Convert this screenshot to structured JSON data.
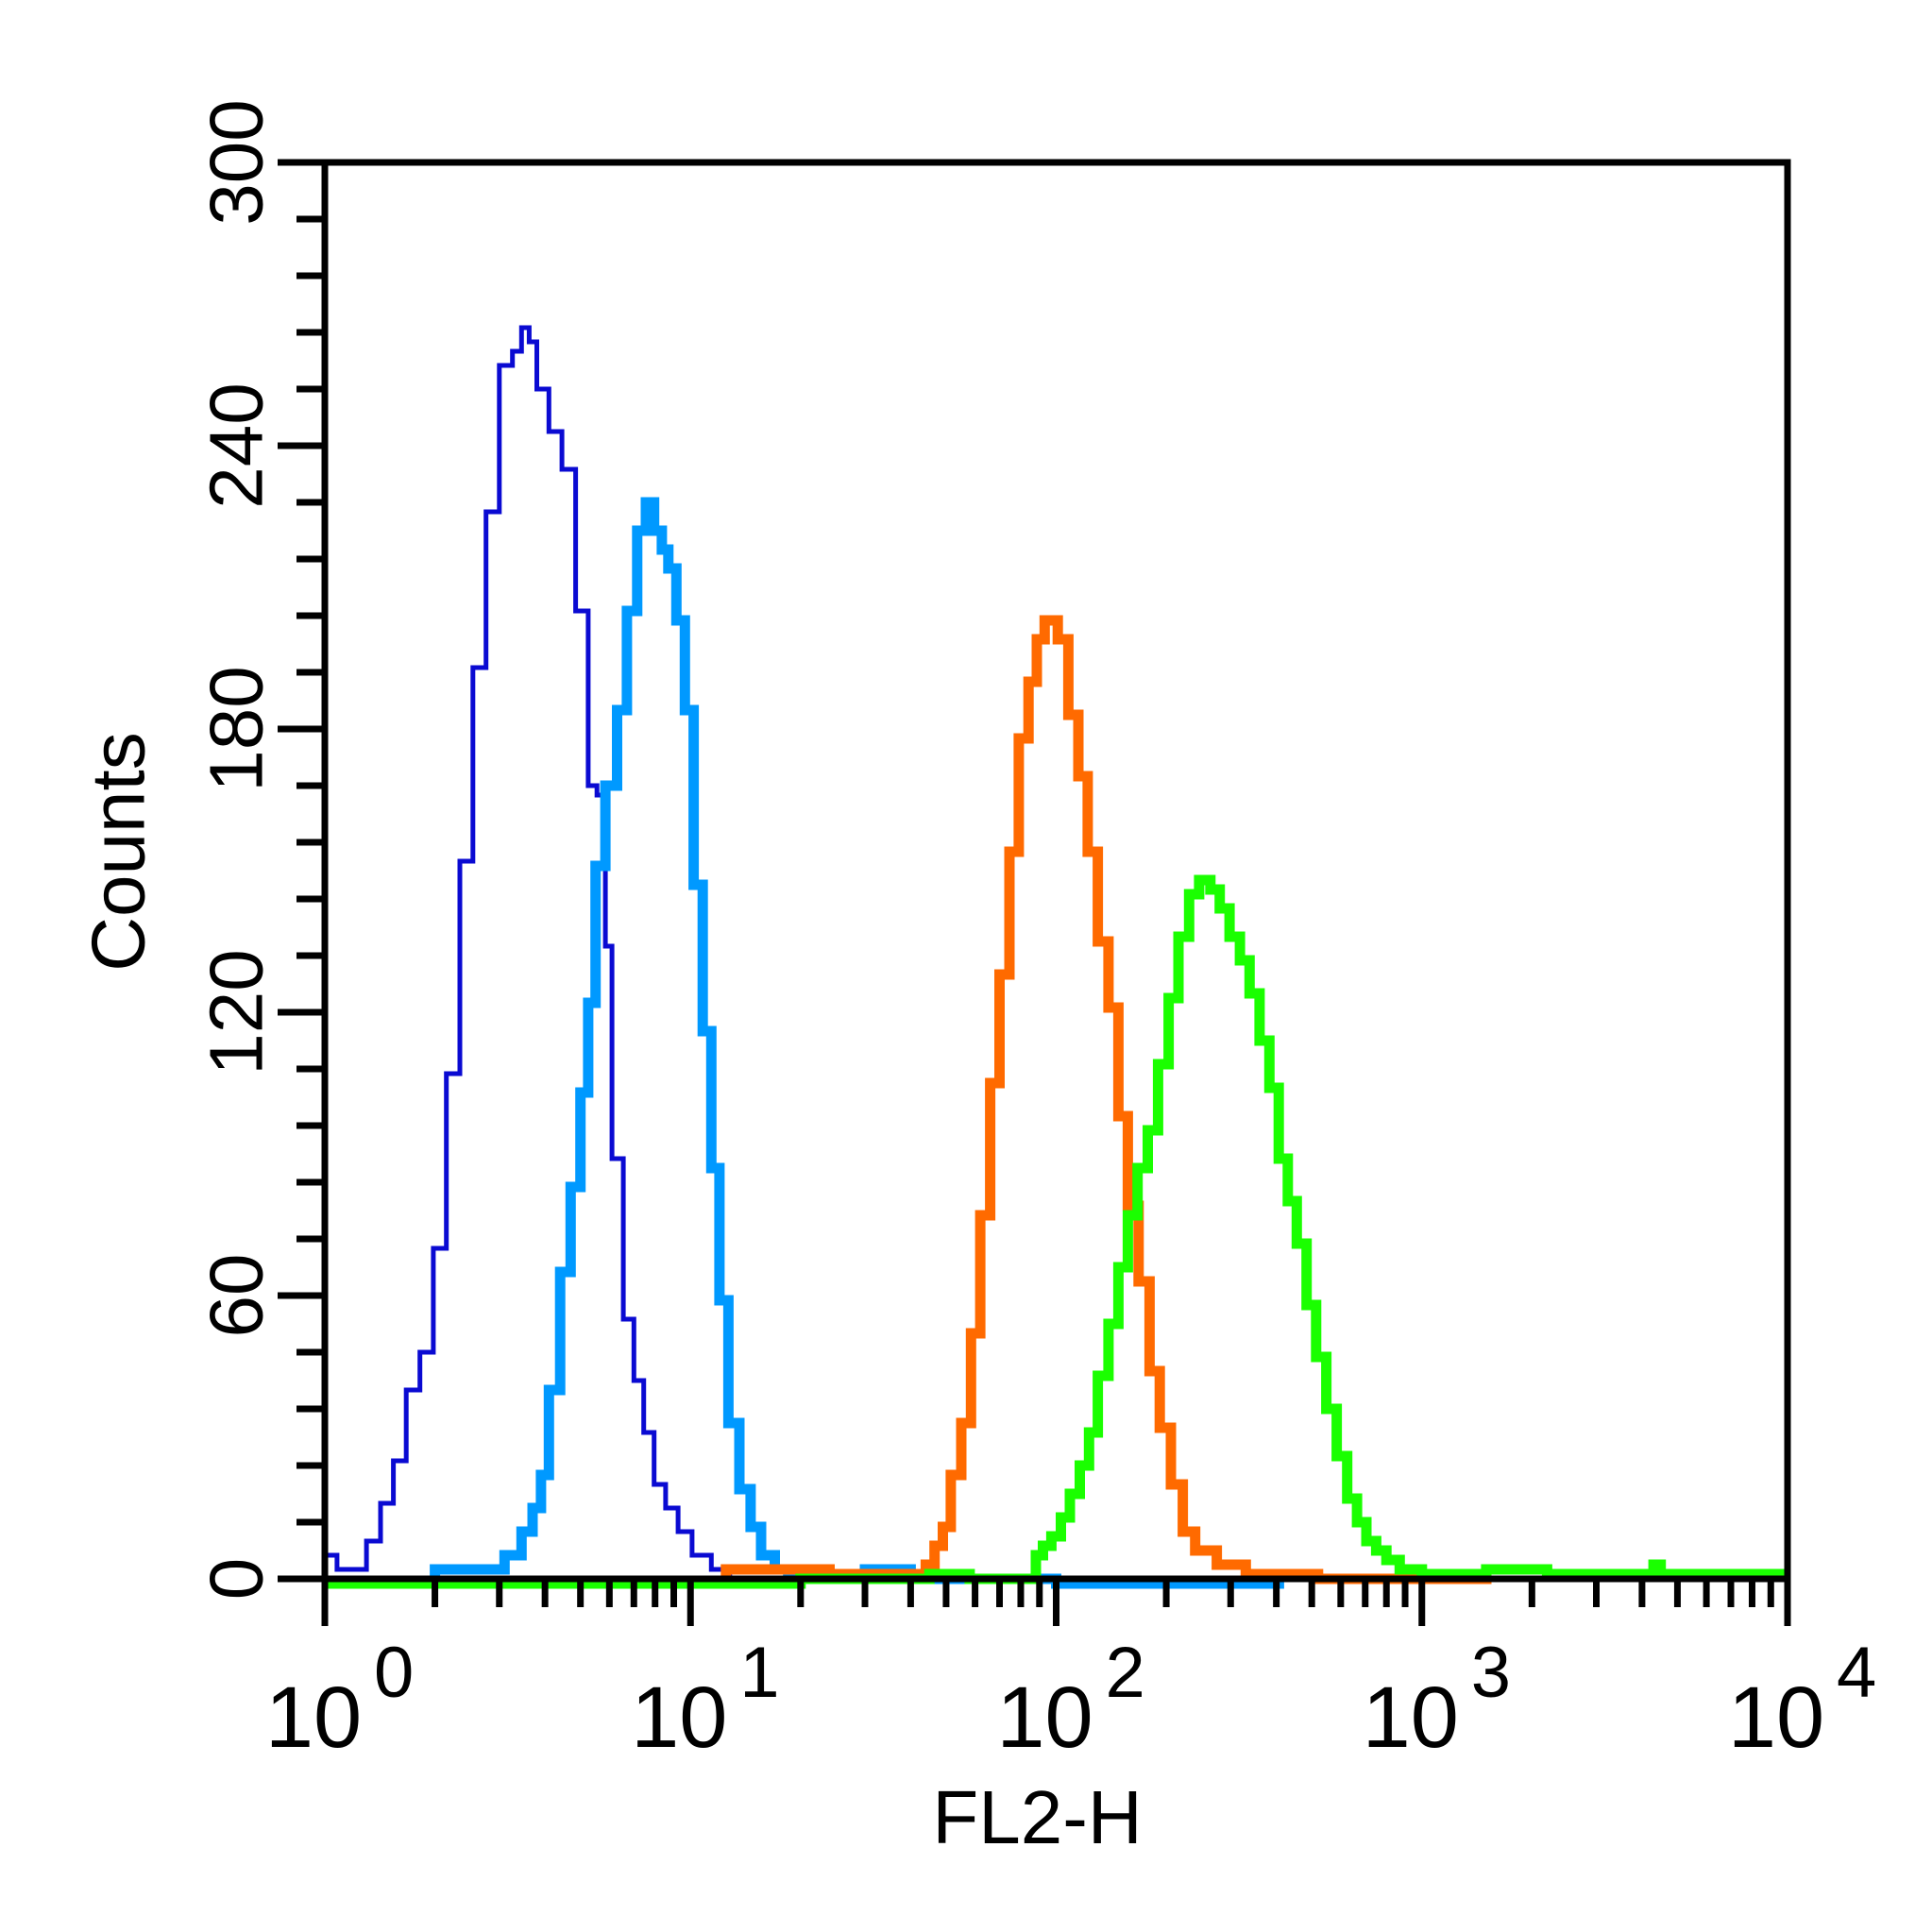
{
  "chart_data": {
    "type": "histogram",
    "xlabel": "FL2-H",
    "ylabel": "Counts",
    "x_scale": "log",
    "xlim": [
      1,
      10000
    ],
    "ylim": [
      0,
      300
    ],
    "x_major_ticks": [
      {
        "value": 1,
        "base": "10",
        "exp": "0"
      },
      {
        "value": 10,
        "base": "10",
        "exp": "1"
      },
      {
        "value": 100,
        "base": "10",
        "exp": "2"
      },
      {
        "value": 1000,
        "base": "10",
        "exp": "3"
      },
      {
        "value": 10000,
        "base": "10",
        "exp": "4"
      }
    ],
    "y_ticks": [
      0,
      60,
      120,
      180,
      240,
      300
    ],
    "y_minor_step": 12,
    "grid": false,
    "legend": false,
    "series": [
      {
        "color": "#0A0AD2",
        "stroke_width": 5,
        "points": [
          [
            1.0,
            0
          ],
          [
            1.0,
            5
          ],
          [
            1.08,
            5
          ],
          [
            1.08,
            2
          ],
          [
            1.3,
            2
          ],
          [
            1.3,
            8
          ],
          [
            1.42,
            8
          ],
          [
            1.42,
            16
          ],
          [
            1.54,
            16
          ],
          [
            1.54,
            25
          ],
          [
            1.67,
            25
          ],
          [
            1.67,
            40
          ],
          [
            1.82,
            40
          ],
          [
            1.82,
            48
          ],
          [
            1.98,
            48
          ],
          [
            1.98,
            70
          ],
          [
            2.15,
            70
          ],
          [
            2.15,
            107
          ],
          [
            2.34,
            107
          ],
          [
            2.34,
            152
          ],
          [
            2.54,
            152
          ],
          [
            2.54,
            193
          ],
          [
            2.76,
            193
          ],
          [
            2.76,
            226
          ],
          [
            3.0,
            226
          ],
          [
            3.0,
            257
          ],
          [
            3.26,
            257
          ],
          [
            3.26,
            260
          ],
          [
            3.45,
            260
          ],
          [
            3.45,
            265
          ],
          [
            3.62,
            265
          ],
          [
            3.62,
            262
          ],
          [
            3.8,
            262
          ],
          [
            3.8,
            252
          ],
          [
            4.1,
            252
          ],
          [
            4.1,
            243
          ],
          [
            4.45,
            243
          ],
          [
            4.45,
            235
          ],
          [
            4.85,
            235
          ],
          [
            4.85,
            205
          ],
          [
            5.25,
            205
          ],
          [
            5.25,
            168
          ],
          [
            5.55,
            168
          ],
          [
            5.55,
            166
          ],
          [
            5.85,
            166
          ],
          [
            5.85,
            134
          ],
          [
            6.1,
            134
          ],
          [
            6.1,
            89
          ],
          [
            6.55,
            89
          ],
          [
            6.55,
            55
          ],
          [
            7.0,
            55
          ],
          [
            7.0,
            42
          ],
          [
            7.45,
            42
          ],
          [
            7.45,
            31
          ],
          [
            7.95,
            31
          ],
          [
            7.95,
            20
          ],
          [
            8.55,
            20
          ],
          [
            8.55,
            15
          ],
          [
            9.25,
            15
          ],
          [
            9.25,
            10
          ],
          [
            10.1,
            10
          ],
          [
            10.1,
            5
          ],
          [
            11.4,
            5
          ],
          [
            11.4,
            2
          ],
          [
            12.8,
            2
          ],
          [
            12.8,
            0
          ],
          [
            14.0,
            0
          ]
        ]
      },
      {
        "color": "#0099FF",
        "stroke_width": 11,
        "points": [
          [
            2.0,
            0
          ],
          [
            2.0,
            2
          ],
          [
            3.1,
            2
          ],
          [
            3.1,
            5
          ],
          [
            3.45,
            5
          ],
          [
            3.45,
            10
          ],
          [
            3.7,
            10
          ],
          [
            3.7,
            15
          ],
          [
            3.9,
            15
          ],
          [
            3.9,
            22
          ],
          [
            4.1,
            22
          ],
          [
            4.1,
            40
          ],
          [
            4.4,
            40
          ],
          [
            4.4,
            65
          ],
          [
            4.7,
            65
          ],
          [
            4.7,
            83
          ],
          [
            5.0,
            83
          ],
          [
            5.0,
            103
          ],
          [
            5.25,
            103
          ],
          [
            5.25,
            122
          ],
          [
            5.5,
            122
          ],
          [
            5.5,
            151
          ],
          [
            5.85,
            151
          ],
          [
            5.85,
            168
          ],
          [
            6.3,
            168
          ],
          [
            6.3,
            184
          ],
          [
            6.7,
            184
          ],
          [
            6.7,
            205
          ],
          [
            7.15,
            205
          ],
          [
            7.15,
            222
          ],
          [
            7.55,
            222
          ],
          [
            7.55,
            228
          ],
          [
            7.95,
            228
          ],
          [
            7.95,
            222
          ],
          [
            8.35,
            222
          ],
          [
            8.35,
            218
          ],
          [
            8.7,
            218
          ],
          [
            8.7,
            214
          ],
          [
            9.15,
            214
          ],
          [
            9.15,
            203
          ],
          [
            9.65,
            203
          ],
          [
            9.65,
            184
          ],
          [
            10.2,
            184
          ],
          [
            10.2,
            147
          ],
          [
            10.8,
            147
          ],
          [
            10.8,
            116
          ],
          [
            11.4,
            116
          ],
          [
            11.4,
            87
          ],
          [
            12.0,
            87
          ],
          [
            12.0,
            59
          ],
          [
            12.7,
            59
          ],
          [
            12.7,
            33
          ],
          [
            13.6,
            33
          ],
          [
            13.6,
            19
          ],
          [
            14.6,
            19
          ],
          [
            14.6,
            11
          ],
          [
            15.6,
            11
          ],
          [
            15.6,
            5
          ],
          [
            17.0,
            5
          ],
          [
            17.0,
            2
          ],
          [
            18.5,
            2
          ],
          [
            18.5,
            0
          ],
          [
            30.0,
            0
          ],
          [
            30.0,
            2
          ],
          [
            40.0,
            2
          ],
          [
            40.0,
            0
          ],
          [
            100.0,
            0
          ],
          [
            100.0,
            -1
          ],
          [
            420.0,
            -1
          ]
        ]
      },
      {
        "color": "#FF6A00",
        "stroke_width": 11,
        "points": [
          [
            12.5,
            0
          ],
          [
            12.5,
            2
          ],
          [
            24.0,
            2
          ],
          [
            24.0,
            1
          ],
          [
            44.0,
            1
          ],
          [
            44.0,
            3
          ],
          [
            46.5,
            3
          ],
          [
            46.5,
            7
          ],
          [
            49.0,
            7
          ],
          [
            49.0,
            11
          ],
          [
            51.5,
            11
          ],
          [
            51.5,
            22
          ],
          [
            55.0,
            22
          ],
          [
            55.0,
            33
          ],
          [
            58.5,
            33
          ],
          [
            58.5,
            52
          ],
          [
            62.0,
            52
          ],
          [
            62.0,
            77
          ],
          [
            66.0,
            77
          ],
          [
            66.0,
            105
          ],
          [
            70.0,
            105
          ],
          [
            70.0,
            128
          ],
          [
            74.5,
            128
          ],
          [
            74.5,
            154
          ],
          [
            79.0,
            154
          ],
          [
            79.0,
            178
          ],
          [
            84.0,
            178
          ],
          [
            84.0,
            190
          ],
          [
            88.5,
            190
          ],
          [
            88.5,
            199
          ],
          [
            93.0,
            199
          ],
          [
            93.0,
            203
          ],
          [
            101.0,
            203
          ],
          [
            101.0,
            199
          ],
          [
            108.0,
            199
          ],
          [
            108.0,
            183
          ],
          [
            115.0,
            183
          ],
          [
            115.0,
            170
          ],
          [
            122.0,
            170
          ],
          [
            122.0,
            154
          ],
          [
            130.0,
            154
          ],
          [
            130.0,
            135
          ],
          [
            139.0,
            135
          ],
          [
            139.0,
            121
          ],
          [
            148.0,
            121
          ],
          [
            148.0,
            98
          ],
          [
            157.0,
            98
          ],
          [
            157.0,
            79
          ],
          [
            168.0,
            79
          ],
          [
            168.0,
            63
          ],
          [
            180.0,
            63
          ],
          [
            180.0,
            44
          ],
          [
            192.0,
            44
          ],
          [
            192.0,
            32
          ],
          [
            206.0,
            32
          ],
          [
            206.0,
            20
          ],
          [
            222.0,
            20
          ],
          [
            222.0,
            10
          ],
          [
            240.0,
            10
          ],
          [
            240.0,
            6
          ],
          [
            275.0,
            6
          ],
          [
            275.0,
            3
          ],
          [
            330.0,
            3
          ],
          [
            330.0,
            1
          ],
          [
            520.0,
            1
          ],
          [
            520.0,
            0
          ],
          [
            1550.0,
            0
          ]
        ]
      },
      {
        "color": "#1AFF00",
        "stroke_width": 11,
        "points": [
          [
            1.0,
            -1
          ],
          [
            20.0,
            -1
          ],
          [
            20.0,
            0
          ],
          [
            45.0,
            0
          ],
          [
            45.0,
            1
          ],
          [
            58.0,
            1
          ],
          [
            58.0,
            0
          ],
          [
            88.0,
            0
          ],
          [
            88.0,
            5
          ],
          [
            92.0,
            5
          ],
          [
            92.0,
            7
          ],
          [
            97.0,
            7
          ],
          [
            97.0,
            9
          ],
          [
            103.0,
            9
          ],
          [
            103.0,
            13
          ],
          [
            109.0,
            13
          ],
          [
            109.0,
            18
          ],
          [
            116.0,
            18
          ],
          [
            116.0,
            24
          ],
          [
            123.0,
            24
          ],
          [
            123.0,
            31
          ],
          [
            130.0,
            31
          ],
          [
            130.0,
            43
          ],
          [
            139.0,
            43
          ],
          [
            139.0,
            54
          ],
          [
            148.0,
            54
          ],
          [
            148.0,
            66
          ],
          [
            157.0,
            66
          ],
          [
            157.0,
            77
          ],
          [
            167.0,
            77
          ],
          [
            167.0,
            87
          ],
          [
            178.0,
            87
          ],
          [
            178.0,
            95
          ],
          [
            190.0,
            95
          ],
          [
            190.0,
            109
          ],
          [
            203.0,
            109
          ],
          [
            203.0,
            123
          ],
          [
            216.0,
            123
          ],
          [
            216.0,
            136
          ],
          [
            231.0,
            136
          ],
          [
            231.0,
            145
          ],
          [
            246.0,
            145
          ],
          [
            246.0,
            148
          ],
          [
            264.0,
            148
          ],
          [
            264.0,
            146
          ],
          [
            280.0,
            146
          ],
          [
            280.0,
            142
          ],
          [
            298.0,
            142
          ],
          [
            298.0,
            136
          ],
          [
            318.0,
            136
          ],
          [
            318.0,
            131
          ],
          [
            338.0,
            131
          ],
          [
            338.0,
            124
          ],
          [
            360.0,
            124
          ],
          [
            360.0,
            114
          ],
          [
            383.0,
            114
          ],
          [
            383.0,
            104
          ],
          [
            406.0,
            104
          ],
          [
            406.0,
            89
          ],
          [
            430.0,
            89
          ],
          [
            430.0,
            80
          ],
          [
            455.0,
            80
          ],
          [
            455.0,
            71
          ],
          [
            484.0,
            71
          ],
          [
            484.0,
            58
          ],
          [
            514.0,
            58
          ],
          [
            514.0,
            47
          ],
          [
            548.0,
            47
          ],
          [
            548.0,
            36
          ],
          [
            585.0,
            36
          ],
          [
            585.0,
            26
          ],
          [
            625.0,
            26
          ],
          [
            625.0,
            17
          ],
          [
            665.0,
            17
          ],
          [
            665.0,
            12
          ],
          [
            705.0,
            12
          ],
          [
            705.0,
            8
          ],
          [
            750.0,
            8
          ],
          [
            750.0,
            6
          ],
          [
            800.0,
            6
          ],
          [
            800.0,
            4
          ],
          [
            870.0,
            4
          ],
          [
            870.0,
            2
          ],
          [
            1000.0,
            2
          ],
          [
            1000.0,
            1
          ],
          [
            1500.0,
            1
          ],
          [
            1500.0,
            2
          ],
          [
            2200.0,
            2
          ],
          [
            2200.0,
            1
          ],
          [
            4300.0,
            1
          ],
          [
            4300.0,
            3
          ],
          [
            4500.0,
            3
          ],
          [
            4500.0,
            1
          ],
          [
            10000.0,
            1
          ]
        ]
      }
    ]
  }
}
